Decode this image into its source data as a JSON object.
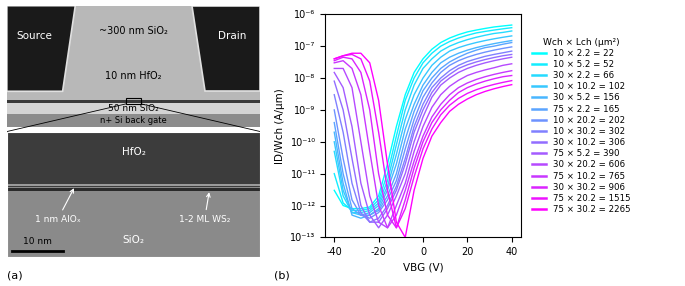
{
  "panel_a": {
    "source": "Source",
    "drain": "Drain",
    "oxide_top": "~300 nm SiO₂",
    "hfo2_layer": "10 nm HfO₂",
    "sio2_layer": "50 nm SiO₂",
    "gate": "n+ Si back gate",
    "zoom_hfo2": "HfO₂",
    "alox": "1 nm AlOₓ",
    "ws2": "1-2 ML WS₂",
    "zoom_sio2": "SiO₂",
    "scale_bar": "10 nm",
    "label": "(a)"
  },
  "chart_data": {
    "type": "line",
    "panel_label": "(b)",
    "x_label": "VBG (V)",
    "y_label": "ID/Wch (A/μm)",
    "log": "y",
    "xlim": [
      -44,
      44
    ],
    "ylim": [
      1e-13,
      1e-06
    ],
    "xticks": [
      -40,
      -20,
      0,
      20,
      40
    ],
    "yticks": [
      {
        "value": 1e-13,
        "label": "10⁻¹³"
      },
      {
        "value": 1e-12,
        "label": "10⁻¹²"
      },
      {
        "value": 1e-11,
        "label": "10⁻¹¹"
      },
      {
        "value": 1e-10,
        "label": "10⁻¹⁰"
      },
      {
        "value": 1e-09,
        "label": "10⁻⁹"
      },
      {
        "value": 1e-08,
        "label": "10⁻⁸"
      },
      {
        "value": 1e-07,
        "label": "10⁻⁷"
      },
      {
        "value": 1e-06,
        "label": "10⁻⁶"
      }
    ],
    "legend": "right",
    "legend_title": "Wch × Lch (μm²)",
    "x": [
      -40,
      -36,
      -32,
      -28,
      -24,
      -20,
      -16,
      -12,
      -8,
      -4,
      0,
      4,
      8,
      12,
      16,
      20,
      24,
      28,
      32,
      36,
      40
    ],
    "series": [
      {
        "name": "10 × 2.2 = 22",
        "color": "#00ffff",
        "values": [
          3e-12,
          1e-12,
          8e-13,
          8e-13,
          9e-13,
          2e-12,
          2e-11,
          3e-10,
          3e-09,
          1.5e-08,
          4e-08,
          8e-08,
          1.3e-07,
          1.8e-07,
          2.3e-07,
          2.8e-07,
          3.2e-07,
          3.6e-07,
          4e-07,
          4.3e-07,
          4.6e-07
        ]
      },
      {
        "name": "10 × 5.2 = 52",
        "color": "#12edff",
        "values": [
          1e-11,
          1.2e-12,
          7e-13,
          7e-13,
          8e-13,
          1.5e-12,
          1e-11,
          1.5e-10,
          2e-09,
          1e-08,
          3e-08,
          6e-08,
          1e-07,
          1.4e-07,
          1.8e-07,
          2.2e-07,
          2.6e-07,
          2.9e-07,
          3.2e-07,
          3.5e-07,
          3.8e-07
        ]
      },
      {
        "name": "30 × 2.2 = 66",
        "color": "#24dbff",
        "values": [
          5e-11,
          2e-12,
          6e-13,
          6e-13,
          7e-13,
          1.2e-12,
          6e-12,
          8e-11,
          1e-09,
          6e-09,
          2e-08,
          4e-08,
          7e-08,
          1e-07,
          1.3e-07,
          1.6e-07,
          1.9e-07,
          2.2e-07,
          2.5e-07,
          2.7e-07,
          3e-07
        ]
      },
      {
        "name": "10 × 10.2 = 102",
        "color": "#37c8ff",
        "values": [
          1e-10,
          3e-12,
          6e-13,
          5e-13,
          6e-13,
          1e-12,
          4e-12,
          4e-11,
          5e-10,
          3e-09,
          1e-08,
          2.5e-08,
          4.5e-08,
          7e-08,
          9e-08,
          1.1e-07,
          1.3e-07,
          1.5e-07,
          1.7e-07,
          1.9e-07,
          2.1e-07
        ]
      },
      {
        "name": "30 × 5.2 = 156",
        "color": "#49b6ff",
        "values": [
          2e-10,
          5e-12,
          5e-13,
          4e-13,
          5e-13,
          8e-13,
          3e-12,
          2e-11,
          2.5e-10,
          1.5e-09,
          6e-09,
          1.5e-08,
          3e-08,
          4.5e-08,
          6e-08,
          7.5e-08,
          9e-08,
          1.05e-07,
          1.2e-07,
          1.35e-07,
          1.5e-07
        ]
      },
      {
        "name": "75 × 2.2 = 165",
        "color": "#5ba4ff",
        "values": [
          4e-10,
          1e-11,
          8e-13,
          5e-13,
          5e-13,
          7e-13,
          2e-12,
          1e-11,
          1.2e-10,
          9e-10,
          4e-09,
          1e-08,
          2e-08,
          3.2e-08,
          4.5e-08,
          6e-08,
          7.5e-08,
          9e-08,
          1e-07,
          1.15e-07,
          1.3e-07
        ]
      },
      {
        "name": "10 × 20.2 = 202",
        "color": "#6d92ff",
        "values": [
          1e-09,
          3e-11,
          1.5e-12,
          5e-13,
          4e-13,
          6e-13,
          1.5e-12,
          6e-12,
          6e-11,
          5e-10,
          2.5e-09,
          7e-09,
          1.5e-08,
          2.5e-08,
          3.5e-08,
          4.5e-08,
          5.5e-08,
          6.5e-08,
          7.5e-08,
          8.5e-08,
          9.5e-08
        ]
      },
      {
        "name": "10 × 30.2 = 302",
        "color": "#8080ff",
        "values": [
          3e-09,
          2e-10,
          5e-12,
          6e-13,
          3e-13,
          4e-13,
          1e-12,
          4e-12,
          3e-11,
          3e-10,
          1.5e-09,
          5e-09,
          1e-08,
          1.7e-08,
          2.5e-08,
          3.3e-08,
          4e-08,
          4.8e-08,
          5.5e-08,
          6.2e-08,
          7e-08
        ]
      },
      {
        "name": "30 × 10.2 = 306",
        "color": "#926dff",
        "values": [
          8e-09,
          1e-09,
          3e-11,
          1e-12,
          3e-13,
          3e-13,
          8e-13,
          3e-12,
          2e-11,
          2e-10,
          1e-09,
          3.5e-09,
          8e-09,
          1.3e-08,
          2e-08,
          2.6e-08,
          3.2e-08,
          3.8e-08,
          4.4e-08,
          5e-08,
          5.5e-08
        ]
      },
      {
        "name": "75 × 5.2 = 390",
        "color": "#a45bff",
        "values": [
          1.5e-08,
          5e-09,
          3e-10,
          5e-12,
          5e-13,
          2e-13,
          5e-13,
          2e-12,
          1e-11,
          1e-10,
          6e-10,
          2.5e-09,
          6e-09,
          1e-08,
          1.5e-08,
          2e-08,
          2.5e-08,
          3e-08,
          3.5e-08,
          4e-08,
          4.5e-08
        ]
      },
      {
        "name": "30 × 20.2 = 606",
        "color": "#b649ff",
        "values": [
          2e-08,
          2e-08,
          5e-09,
          1e-10,
          2e-12,
          3e-13,
          2e-13,
          1e-12,
          5e-12,
          5e-11,
          3e-10,
          1.2e-09,
          3e-09,
          5.5e-09,
          8.5e-09,
          1.2e-08,
          1.5e-08,
          1.8e-08,
          2.1e-08,
          2.5e-08,
          2.8e-08
        ]
      },
      {
        "name": "75 × 10.2 = 765",
        "color": "#c837ff",
        "values": [
          3e-08,
          3.5e-08,
          2e-08,
          3e-09,
          5e-11,
          1e-12,
          2e-13,
          5e-13,
          3e-12,
          2.5e-11,
          1.5e-10,
          6e-10,
          1.5e-09,
          3e-09,
          5e-09,
          7e-09,
          9e-09,
          1.1e-08,
          1.3e-08,
          1.5e-08,
          1.7e-08
        ]
      },
      {
        "name": "30 × 30.2 = 906",
        "color": "#db24ff",
        "values": [
          3.5e-08,
          4.5e-08,
          4e-08,
          1.5e-08,
          1e-09,
          1e-11,
          5e-13,
          2e-13,
          1.5e-12,
          1.5e-11,
          1e-10,
          4e-10,
          1e-09,
          2e-09,
          3.5e-09,
          5e-09,
          6.5e-09,
          8e-09,
          9.5e-09,
          1.1e-08,
          1.2e-08
        ]
      },
      {
        "name": "75 × 20.2 = 1515",
        "color": "#ed12ff",
        "values": [
          4e-08,
          5e-08,
          5.5e-08,
          4e-08,
          8e-09,
          2e-10,
          3e-12,
          2e-13,
          8e-13,
          8e-12,
          6e-11,
          2.5e-10,
          7e-10,
          1.4e-09,
          2.3e-09,
          3.3e-09,
          4.3e-09,
          5.3e-09,
          6.3e-09,
          7.3e-09,
          8.3e-09
        ]
      },
      {
        "name": "75 × 30.2 = 2265",
        "color": "#ff00ff",
        "values": [
          4e-08,
          5e-08,
          6e-08,
          6e-08,
          3e-08,
          2e-09,
          2e-11,
          3e-13,
          1e-13,
          3e-12,
          3e-11,
          1.5e-10,
          4e-10,
          9e-10,
          1.5e-09,
          2.2e-09,
          3e-09,
          3.8e-09,
          4.6e-09,
          5.4e-09,
          6.2e-09
        ]
      }
    ]
  }
}
